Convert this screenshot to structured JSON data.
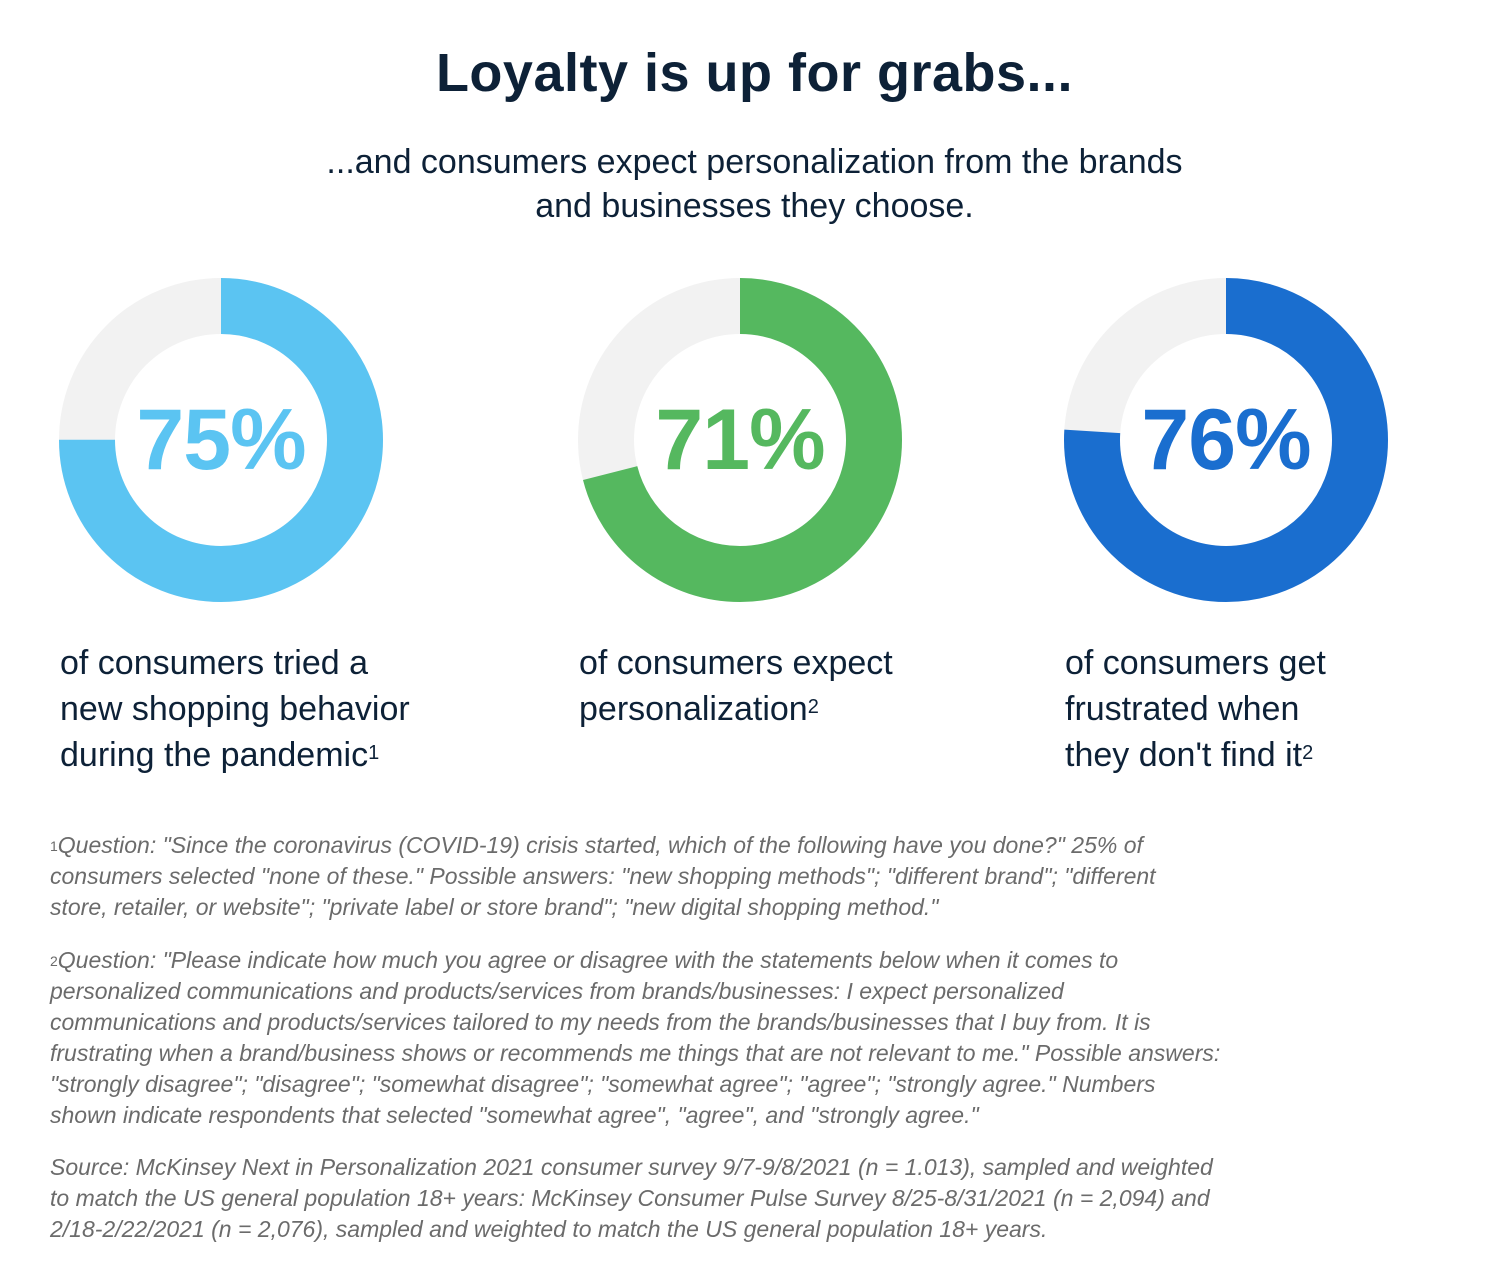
{
  "chart_data": {
    "type": "pie",
    "title": "Loyalty is up for grabs...",
    "subtitle": [
      "...and consumers expect personalization from the brands",
      "and businesses they choose."
    ],
    "charts": [
      {
        "value": 75,
        "label": "75%",
        "caption": [
          "of consumers tried a",
          "new shopping behavior",
          "during the pandemic"
        ],
        "footnote_mark": "1",
        "color": "#5bc4f2"
      },
      {
        "value": 71,
        "label": "71%",
        "caption": [
          "of consumers expect",
          "personalization"
        ],
        "footnote_mark": "2",
        "color": "#55b85f"
      },
      {
        "value": 76,
        "label": "76%",
        "caption": [
          "of consumers get",
          "frustrated when",
          "they don't find it"
        ],
        "footnote_mark": "2",
        "color": "#1a6ecf"
      }
    ],
    "track_color": "#f2f2f2"
  },
  "notes": {
    "note1": {
      "mark": "1",
      "lines": [
        "Question: \"Since the coronavirus (COVID-19) crisis started, which of the following have you done?\" 25% of",
        "consumers selected \"none of these.\" Possible answers: \"new shopping methods\"; \"different brand\"; \"different",
        "store, retailer, or website\"; \"private label or store brand\"; \"new digital shopping method.\""
      ]
    },
    "note2": {
      "mark": "2",
      "lines": [
        "Question: \"Please indicate how much you agree or disagree with the statements below when it comes to",
        "personalized communications and products/services from brands/businesses: I expect personalized",
        "communications and products/services tailored to my needs from the brands/businesses that I buy from. It is",
        "frustrating when a brand/business shows or recommends me things that are not relevant to me.\" Possible answers:",
        "\"strongly disagree\"; \"disagree\"; \"somewhat disagree\"; \"somewhat agree\"; \"agree\"; \"strongly agree.\" Numbers",
        "shown indicate respondents that selected \"somewhat agree\", \"agree\", and \"strongly agree.\""
      ]
    },
    "source": {
      "lines": [
        "Source: McKinsey Next in Personalization 2021 consumer survey 9/7-9/8/2021 (n = 1.013), sampled and weighted",
        "to match the US general population 18+ years: McKinsey Consumer Pulse Survey 8/25-8/31/2021 (n = 2,094) and",
        "2/18-2/22/2021 (n = 2,076), sampled and weighted to match the US general population 18+ years."
      ]
    }
  }
}
